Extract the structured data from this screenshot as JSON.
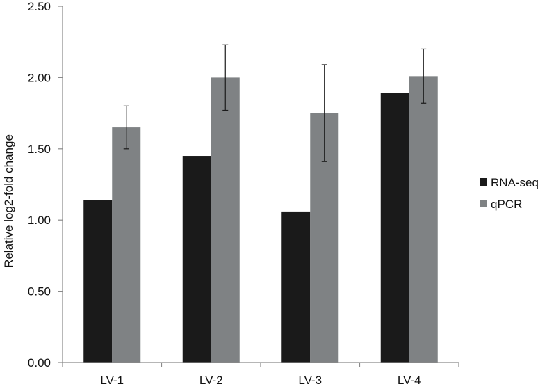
{
  "chart_data": {
    "type": "bar",
    "title": "",
    "xlabel": "",
    "ylabel": "Relative log2-fold change",
    "ylim": [
      0,
      2.5
    ],
    "yticks": [
      "0.00",
      "0.50",
      "1.00",
      "1.50",
      "2.00",
      "2.50"
    ],
    "ytick_values": [
      0,
      0.5,
      1.0,
      1.5,
      2.0,
      2.5
    ],
    "categories": [
      "LV-1",
      "LV-2",
      "LV-3",
      "LV-4"
    ],
    "series": [
      {
        "name": "RNA-seq",
        "color": "#1a1a1a",
        "values": [
          1.14,
          1.45,
          1.06,
          1.89
        ],
        "errors": null
      },
      {
        "name": "qPCR",
        "color": "#7f8284",
        "values": [
          1.65,
          2.0,
          1.75,
          2.01
        ],
        "errors": [
          0.15,
          0.23,
          0.34,
          0.19
        ]
      }
    ],
    "grid": false,
    "legend_position": "right"
  }
}
